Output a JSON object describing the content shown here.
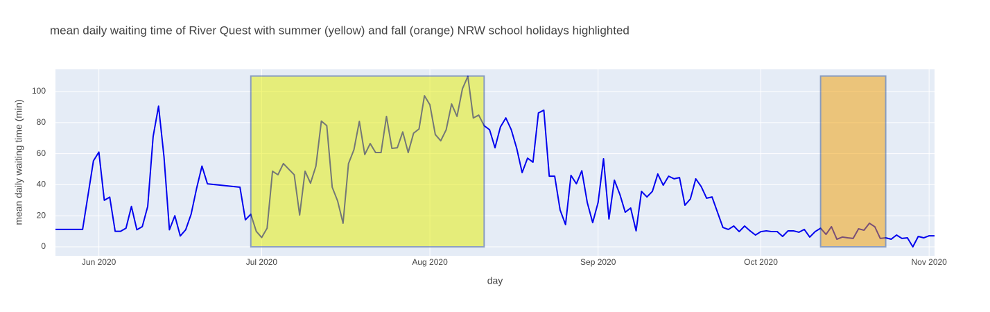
{
  "chart_data": {
    "type": "line",
    "title": "mean daily waiting time of River Quest with summer (yellow) and fall (orange) NRW school holidays highlighted",
    "x_label": "day",
    "y_label": "mean daily waiting time (min)",
    "x": [
      "2020-05-24",
      "2020-05-29",
      "2020-05-31",
      "2020-06-01",
      "2020-06-02",
      "2020-06-03",
      "2020-06-04",
      "2020-06-05",
      "2020-06-06",
      "2020-06-07",
      "2020-06-08",
      "2020-06-09",
      "2020-06-10",
      "2020-06-11",
      "2020-06-12",
      "2020-06-13",
      "2020-06-14",
      "2020-06-15",
      "2020-06-16",
      "2020-06-17",
      "2020-06-18",
      "2020-06-19",
      "2020-06-20",
      "2020-06-21",
      "2020-06-27",
      "2020-06-28",
      "2020-06-29",
      "2020-06-30",
      "2020-07-01",
      "2020-07-02",
      "2020-07-03",
      "2020-07-04",
      "2020-07-05",
      "2020-07-06",
      "2020-07-07",
      "2020-07-08",
      "2020-07-09",
      "2020-07-10",
      "2020-07-11",
      "2020-07-12",
      "2020-07-13",
      "2020-07-14",
      "2020-07-15",
      "2020-07-16",
      "2020-07-17",
      "2020-07-18",
      "2020-07-19",
      "2020-07-20",
      "2020-07-21",
      "2020-07-22",
      "2020-07-23",
      "2020-07-24",
      "2020-07-25",
      "2020-07-26",
      "2020-07-27",
      "2020-07-28",
      "2020-07-29",
      "2020-07-30",
      "2020-07-31",
      "2020-08-01",
      "2020-08-02",
      "2020-08-03",
      "2020-08-04",
      "2020-08-05",
      "2020-08-06",
      "2020-08-07",
      "2020-08-08",
      "2020-08-09",
      "2020-08-10",
      "2020-08-11",
      "2020-08-12",
      "2020-08-13",
      "2020-08-14",
      "2020-08-15",
      "2020-08-16",
      "2020-08-17",
      "2020-08-18",
      "2020-08-19",
      "2020-08-20",
      "2020-08-21",
      "2020-08-22",
      "2020-08-23",
      "2020-08-24",
      "2020-08-25",
      "2020-08-26",
      "2020-08-27",
      "2020-08-28",
      "2020-08-29",
      "2020-08-30",
      "2020-08-31",
      "2020-09-01",
      "2020-09-02",
      "2020-09-03",
      "2020-09-04",
      "2020-09-05",
      "2020-09-06",
      "2020-09-07",
      "2020-09-08",
      "2020-09-09",
      "2020-09-10",
      "2020-09-11",
      "2020-09-12",
      "2020-09-13",
      "2020-09-14",
      "2020-09-15",
      "2020-09-16",
      "2020-09-17",
      "2020-09-18",
      "2020-09-19",
      "2020-09-20",
      "2020-09-21",
      "2020-09-22",
      "2020-09-23",
      "2020-09-24",
      "2020-09-25",
      "2020-09-26",
      "2020-09-27",
      "2020-09-28",
      "2020-09-29",
      "2020-09-30",
      "2020-10-01",
      "2020-10-02",
      "2020-10-03",
      "2020-10-04",
      "2020-10-05",
      "2020-10-06",
      "2020-10-07",
      "2020-10-08",
      "2020-10-09",
      "2020-10-10",
      "2020-10-11",
      "2020-10-12",
      "2020-10-13",
      "2020-10-14",
      "2020-10-15",
      "2020-10-16",
      "2020-10-17",
      "2020-10-18",
      "2020-10-19",
      "2020-10-20",
      "2020-10-21",
      "2020-10-22",
      "2020-10-23",
      "2020-10-24",
      "2020-10-25",
      "2020-10-26",
      "2020-10-27",
      "2020-10-28",
      "2020-10-29",
      "2020-10-30",
      "2020-10-31",
      "2020-11-01",
      "2020-11-02"
    ],
    "series": [
      {
        "color": "#0000ee",
        "values": [
          11.2,
          11.2,
          55.4,
          61,
          30,
          32,
          10,
          10,
          12,
          26,
          11,
          13,
          26,
          71,
          90.6,
          58,
          11,
          20,
          7,
          11,
          21,
          37.5,
          52,
          40.6,
          38.4,
          17.4,
          21,
          10,
          6,
          12,
          48.7,
          46.4,
          53.6,
          50,
          46.4,
          20.5,
          48.7,
          41,
          52,
          81,
          78,
          38.4,
          29.5,
          15.2,
          53.6,
          62.5,
          80.8,
          59.4,
          66.5,
          60.7,
          60.7,
          84,
          63.4,
          63.8,
          74,
          60.7,
          73.2,
          75.9,
          97.3,
          91.5,
          72.3,
          68.3,
          75.4,
          92,
          84,
          101.8,
          109.8,
          83,
          84.8,
          78,
          75.4,
          63.8,
          77.2,
          83,
          75.4,
          63.4,
          47.8,
          57.1,
          54.5,
          86.2,
          88,
          45.5,
          45.5,
          23.7,
          14.3,
          46,
          40.6,
          49,
          28.6,
          15.6,
          28.6,
          56.7,
          17.9,
          42.9,
          33.9,
          22.3,
          25,
          10.3,
          35.7,
          32.1,
          35.7,
          46.9,
          39.7,
          45.5,
          43.8,
          44.6,
          26.8,
          30.8,
          43.8,
          38.8,
          31.3,
          32.1,
          22.3,
          12.5,
          11.2,
          13.4,
          9.8,
          13.4,
          10.3,
          7.6,
          9.8,
          10.3,
          9.8,
          9.8,
          6.7,
          10.3,
          10.3,
          9.4,
          11.2,
          6.3,
          9.8,
          12,
          8,
          13,
          4.9,
          6.3,
          5.8,
          5.4,
          11.6,
          10.7,
          15.2,
          12.9,
          5.4,
          5.8,
          4.9,
          7.6,
          5.4,
          5.8,
          0,
          6.7,
          5.8,
          7.1,
          7.1
        ]
      }
    ],
    "xlim": [
      "2020-05-24",
      "2020-11-02"
    ],
    "xticks": [
      {
        "value": "2020-06-01",
        "label": "Jun 2020"
      },
      {
        "value": "2020-07-01",
        "label": "Jul 2020"
      },
      {
        "value": "2020-08-01",
        "label": "Aug 2020"
      },
      {
        "value": "2020-09-01",
        "label": "Sep 2020"
      },
      {
        "value": "2020-10-01",
        "label": "Oct 2020"
      },
      {
        "value": "2020-11-01",
        "label": "Nov 2020"
      }
    ],
    "ylim": [
      -5.8,
      114.3
    ],
    "yticks": [
      0,
      20,
      40,
      60,
      80,
      100
    ],
    "grid": true,
    "highlights": [
      {
        "x0": "2020-06-29",
        "x1": "2020-08-11",
        "y0": 0,
        "y1": 110,
        "color": "#e6ee00",
        "line_color": "#2b4c8a"
      },
      {
        "x0": "2020-10-12",
        "x1": "2020-10-24",
        "y0": 0,
        "y1": 110,
        "color": "#f29d00",
        "line_color": "#2b4c8a"
      }
    ]
  }
}
